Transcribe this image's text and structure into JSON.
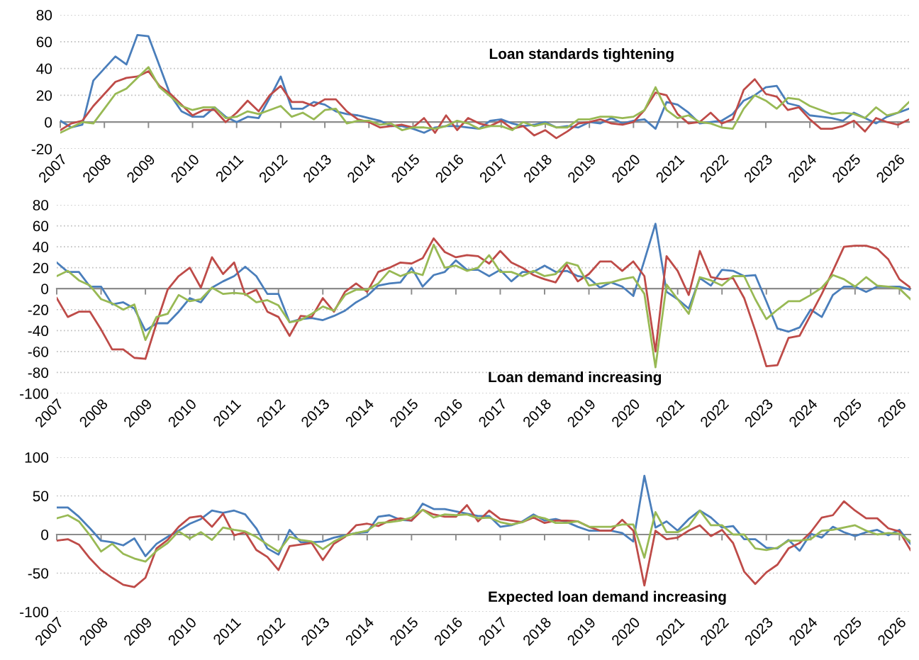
{
  "chart_data": [
    {
      "type": "line",
      "title": "Loan standards tightening",
      "xlim": [
        2007,
        2026.25
      ],
      "xticks": [
        2007,
        2008,
        2009,
        2010,
        2011,
        2012,
        2013,
        2014,
        2015,
        2016,
        2017,
        2018,
        2019,
        2020,
        2021,
        2022,
        2023,
        2024,
        2025,
        2026
      ],
      "ylim": [
        -20,
        80
      ],
      "yticks": [
        -20,
        0,
        20,
        40,
        60,
        80
      ],
      "grid": "y",
      "x": [
        2007,
        2007.25,
        2007.5,
        2007.75,
        2008,
        2008.25,
        2008.5,
        2008.75,
        2009,
        2009.25,
        2009.5,
        2009.75,
        2010,
        2010.25,
        2010.5,
        2010.75,
        2011,
        2011.25,
        2011.5,
        2011.75,
        2012,
        2012.25,
        2012.5,
        2012.75,
        2013,
        2013.25,
        2013.5,
        2013.75,
        2014,
        2014.25,
        2014.5,
        2014.75,
        2015,
        2015.25,
        2015.5,
        2015.75,
        2016,
        2016.25,
        2016.5,
        2016.75,
        2017,
        2017.25,
        2017.5,
        2017.75,
        2018,
        2018.25,
        2018.5,
        2018.75,
        2019,
        2019.25,
        2019.5,
        2019.75,
        2020,
        2020.25,
        2020.5,
        2020.75,
        2021,
        2021.25,
        2021.5,
        2021.75,
        2022,
        2022.25,
        2022.5,
        2022.75,
        2023,
        2023.25,
        2023.5,
        2023.75,
        2024,
        2024.25,
        2024.5,
        2024.75,
        2025,
        2025.25,
        2025.5,
        2025.75,
        2026,
        2026.25
      ],
      "series": [
        {
          "color": "#4a7ebb",
          "values": [
            1,
            -4,
            -2,
            31,
            40,
            49,
            43,
            65,
            64,
            42,
            20,
            8,
            4,
            4,
            11,
            4,
            0,
            4,
            3,
            18,
            34,
            10,
            10,
            15,
            13,
            8,
            6,
            5,
            3,
            1,
            -3,
            -3,
            -5,
            -8,
            -4,
            -3,
            -3,
            -4,
            -5,
            1,
            2,
            -1,
            -3,
            -2,
            0,
            -4,
            -3,
            -4,
            0,
            -1,
            3,
            -1,
            1,
            2,
            -5,
            15,
            13,
            7,
            -1,
            0,
            1,
            6,
            16,
            20,
            26,
            27,
            14,
            12,
            5,
            4,
            3,
            1,
            7,
            3,
            -1,
            4,
            7,
            10
          ]
        },
        {
          "color": "#be4b48",
          "values": [
            -6,
            -1,
            1,
            12,
            21,
            30,
            33,
            34,
            38,
            27,
            21,
            13,
            5,
            9,
            9,
            0,
            7,
            16,
            8,
            20,
            27,
            15,
            15,
            12,
            17,
            17,
            8,
            2,
            0,
            -4,
            -3,
            -2,
            -4,
            3,
            -8,
            5,
            -6,
            3,
            -1,
            -3,
            1,
            -5,
            -3,
            -10,
            -6,
            -12,
            -7,
            -1,
            0,
            2,
            -1,
            -2,
            0,
            9,
            22,
            20,
            6,
            -1,
            0,
            7,
            -1,
            2,
            24,
            32,
            21,
            19,
            9,
            11,
            2,
            -5,
            -5,
            -3,
            1,
            -7,
            3,
            0,
            -2,
            2
          ]
        },
        {
          "color": "#98b954",
          "values": [
            -8,
            -4,
            0,
            -1,
            10,
            21,
            25,
            33,
            41,
            26,
            19,
            12,
            9,
            11,
            11,
            3,
            4,
            8,
            6,
            9,
            12,
            4,
            7,
            2,
            9,
            10,
            -1,
            1,
            1,
            -2,
            -1,
            -6,
            -4,
            -4,
            -5,
            -3,
            1,
            -1,
            -5,
            -3,
            -3,
            -6,
            0,
            -3,
            -1,
            -4,
            -4,
            2,
            2,
            4,
            4,
            3,
            4,
            9,
            26,
            9,
            3,
            5,
            0,
            -1,
            -4,
            -5,
            10,
            20,
            16,
            10,
            18,
            17,
            12,
            9,
            6,
            7,
            6,
            3,
            11,
            5,
            7,
            15
          ]
        }
      ]
    },
    {
      "type": "line",
      "title": "Loan demand increasing",
      "xlim": [
        2007,
        2026.25
      ],
      "xticks": [
        2007,
        2008,
        2009,
        2010,
        2011,
        2012,
        2013,
        2014,
        2015,
        2016,
        2017,
        2018,
        2019,
        2020,
        2021,
        2022,
        2023,
        2024,
        2025,
        2026
      ],
      "ylim": [
        -100,
        80
      ],
      "yticks": [
        -100,
        -80,
        -60,
        -40,
        -20,
        0,
        20,
        40,
        60,
        80
      ],
      "grid": "y",
      "x": [
        2007,
        2007.25,
        2007.5,
        2007.75,
        2008,
        2008.25,
        2008.5,
        2008.75,
        2009,
        2009.25,
        2009.5,
        2009.75,
        2010,
        2010.25,
        2010.5,
        2010.75,
        2011,
        2011.25,
        2011.5,
        2011.75,
        2012,
        2012.25,
        2012.5,
        2012.75,
        2013,
        2013.25,
        2013.5,
        2013.75,
        2014,
        2014.25,
        2014.5,
        2014.75,
        2015,
        2015.25,
        2015.5,
        2015.75,
        2016,
        2016.25,
        2016.5,
        2016.75,
        2017,
        2017.25,
        2017.5,
        2017.75,
        2018,
        2018.25,
        2018.5,
        2018.75,
        2019,
        2019.25,
        2019.5,
        2019.75,
        2020,
        2020.25,
        2020.5,
        2020.75,
        2021,
        2021.25,
        2021.5,
        2021.75,
        2022,
        2022.25,
        2022.5,
        2022.75,
        2023,
        2023.25,
        2023.5,
        2023.75,
        2024,
        2024.25,
        2024.5,
        2024.75,
        2025,
        2025.25,
        2025.5,
        2025.75,
        2026,
        2026.25
      ],
      "series": [
        {
          "color": "#4a7ebb",
          "values": [
            25,
            16,
            16,
            2,
            2,
            -15,
            -13,
            -19,
            -40,
            -33,
            -33,
            -22,
            -9,
            -13,
            1,
            7,
            12,
            21,
            12,
            -5,
            -5,
            -32,
            -29,
            -28,
            -30,
            -26,
            -21,
            -13,
            -7,
            3,
            5,
            6,
            20,
            2,
            13,
            16,
            27,
            18,
            18,
            12,
            18,
            7,
            16,
            16,
            22,
            16,
            17,
            12,
            10,
            1,
            6,
            2,
            -7,
            27,
            62,
            -3,
            -10,
            -19,
            10,
            3,
            18,
            17,
            12,
            13,
            -12,
            -38,
            -41,
            -37,
            -20,
            -27,
            -6,
            2,
            2,
            -3,
            2,
            2,
            2,
            -1
          ]
        },
        {
          "color": "#be4b48",
          "values": [
            -9,
            -27,
            -22,
            -22,
            -39,
            -58,
            -58,
            -66,
            -67,
            -33,
            -1,
            12,
            20,
            1,
            30,
            14,
            25,
            -6,
            -1,
            -22,
            -27,
            -45,
            -26,
            -27,
            -9,
            -22,
            -3,
            5,
            -3,
            16,
            20,
            25,
            24,
            29,
            48,
            35,
            30,
            32,
            31,
            24,
            36,
            25,
            20,
            13,
            9,
            6,
            23,
            7,
            14,
            26,
            26,
            17,
            26,
            12,
            -60,
            31,
            17,
            -6,
            36,
            11,
            9,
            10,
            -9,
            -40,
            -74,
            -73,
            -47,
            -45,
            -25,
            -5,
            17,
            40,
            41,
            41,
            38,
            28,
            9,
            1
          ]
        },
        {
          "color": "#98b954",
          "values": [
            12,
            17,
            8,
            3,
            -10,
            -14,
            -20,
            -15,
            -49,
            -27,
            -24,
            -6,
            -12,
            -10,
            1,
            -5,
            -4,
            -5,
            -13,
            -11,
            -16,
            -32,
            -30,
            -24,
            -17,
            -21,
            -6,
            -1,
            -1,
            5,
            17,
            12,
            16,
            13,
            42,
            20,
            22,
            17,
            20,
            32,
            16,
            16,
            12,
            17,
            12,
            14,
            25,
            22,
            3,
            5,
            6,
            9,
            11,
            -5,
            -75,
            4,
            -10,
            -24,
            11,
            8,
            3,
            12,
            12,
            -10,
            -29,
            -20,
            -12,
            -12,
            -6,
            1,
            13,
            9,
            2,
            11,
            3,
            2,
            0,
            -10
          ]
        }
      ]
    },
    {
      "type": "line",
      "title": "Expected loan demand increasing",
      "xlim": [
        2007,
        2026.25
      ],
      "xticks": [
        2007,
        2008,
        2009,
        2010,
        2011,
        2012,
        2013,
        2014,
        2015,
        2016,
        2017,
        2018,
        2019,
        2020,
        2021,
        2022,
        2023,
        2024,
        2025,
        2026
      ],
      "ylim": [
        -100,
        100
      ],
      "yticks": [
        -100,
        -50,
        0,
        50,
        100
      ],
      "grid": "y",
      "x": [
        2007,
        2007.25,
        2007.5,
        2007.75,
        2008,
        2008.25,
        2008.5,
        2008.75,
        2009,
        2009.25,
        2009.5,
        2009.75,
        2010,
        2010.25,
        2010.5,
        2010.75,
        2011,
        2011.25,
        2011.5,
        2011.75,
        2012,
        2012.25,
        2012.5,
        2012.75,
        2013,
        2013.25,
        2013.5,
        2013.75,
        2014,
        2014.25,
        2014.5,
        2014.75,
        2015,
        2015.25,
        2015.5,
        2015.75,
        2016,
        2016.25,
        2016.5,
        2016.75,
        2017,
        2017.25,
        2017.5,
        2017.75,
        2018,
        2018.25,
        2018.5,
        2018.75,
        2019,
        2019.25,
        2019.5,
        2019.75,
        2020,
        2020.25,
        2020.5,
        2020.75,
        2021,
        2021.25,
        2021.5,
        2021.75,
        2022,
        2022.25,
        2022.5,
        2022.75,
        2023,
        2023.25,
        2023.5,
        2023.75,
        2024,
        2024.25,
        2024.5,
        2024.75,
        2025,
        2025.25,
        2025.5,
        2025.75,
        2026,
        2026.25
      ],
      "series": [
        {
          "color": "#4a7ebb",
          "values": [
            35,
            35,
            23,
            8,
            -8,
            -10,
            -14,
            -5,
            -28,
            -12,
            -3,
            5,
            14,
            20,
            31,
            28,
            31,
            26,
            8,
            -18,
            -26,
            6,
            -10,
            -10,
            -9,
            -4,
            -1,
            2,
            3,
            23,
            25,
            19,
            18,
            40,
            33,
            33,
            30,
            27,
            24,
            24,
            10,
            12,
            17,
            26,
            18,
            20,
            16,
            10,
            5,
            5,
            5,
            2,
            -9,
            76,
            9,
            17,
            5,
            20,
            31,
            22,
            9,
            11,
            -6,
            -6,
            -17,
            -18,
            -7,
            -21,
            1,
            -4,
            10,
            3,
            -2,
            3,
            6,
            -1,
            6,
            -12
          ]
        },
        {
          "color": "#be4b48",
          "values": [
            -8,
            -6,
            -13,
            -31,
            -46,
            -56,
            -65,
            -68,
            -56,
            -18,
            -7,
            10,
            22,
            24,
            10,
            27,
            -1,
            3,
            -20,
            -29,
            -46,
            -15,
            -13,
            -11,
            -33,
            -12,
            -3,
            12,
            14,
            11,
            18,
            21,
            18,
            32,
            26,
            23,
            23,
            38,
            17,
            31,
            20,
            18,
            16,
            22,
            15,
            18,
            18,
            17,
            10,
            5,
            5,
            19,
            5,
            -66,
            5,
            -6,
            -4,
            5,
            12,
            -2,
            6,
            -11,
            -48,
            -64,
            -49,
            -39,
            -18,
            -11,
            3,
            22,
            25,
            43,
            31,
            21,
            21,
            8,
            4,
            -20
          ]
        },
        {
          "color": "#98b954",
          "values": [
            21,
            25,
            17,
            -1,
            -22,
            -12,
            -25,
            -31,
            -35,
            -21,
            -11,
            4,
            -5,
            3,
            -7,
            9,
            6,
            4,
            -3,
            -13,
            -22,
            -3,
            -7,
            -9,
            -19,
            -9,
            -2,
            2,
            5,
            15,
            16,
            18,
            22,
            32,
            22,
            26,
            25,
            26,
            21,
            22,
            16,
            13,
            16,
            24,
            21,
            15,
            15,
            17,
            10,
            10,
            10,
            13,
            13,
            -30,
            29,
            3,
            3,
            11,
            31,
            12,
            12,
            0,
            0,
            -18,
            -20,
            -17,
            -8,
            -8,
            -6,
            5,
            6,
            9,
            12,
            5,
            0,
            2,
            1,
            -9
          ]
        }
      ]
    }
  ]
}
